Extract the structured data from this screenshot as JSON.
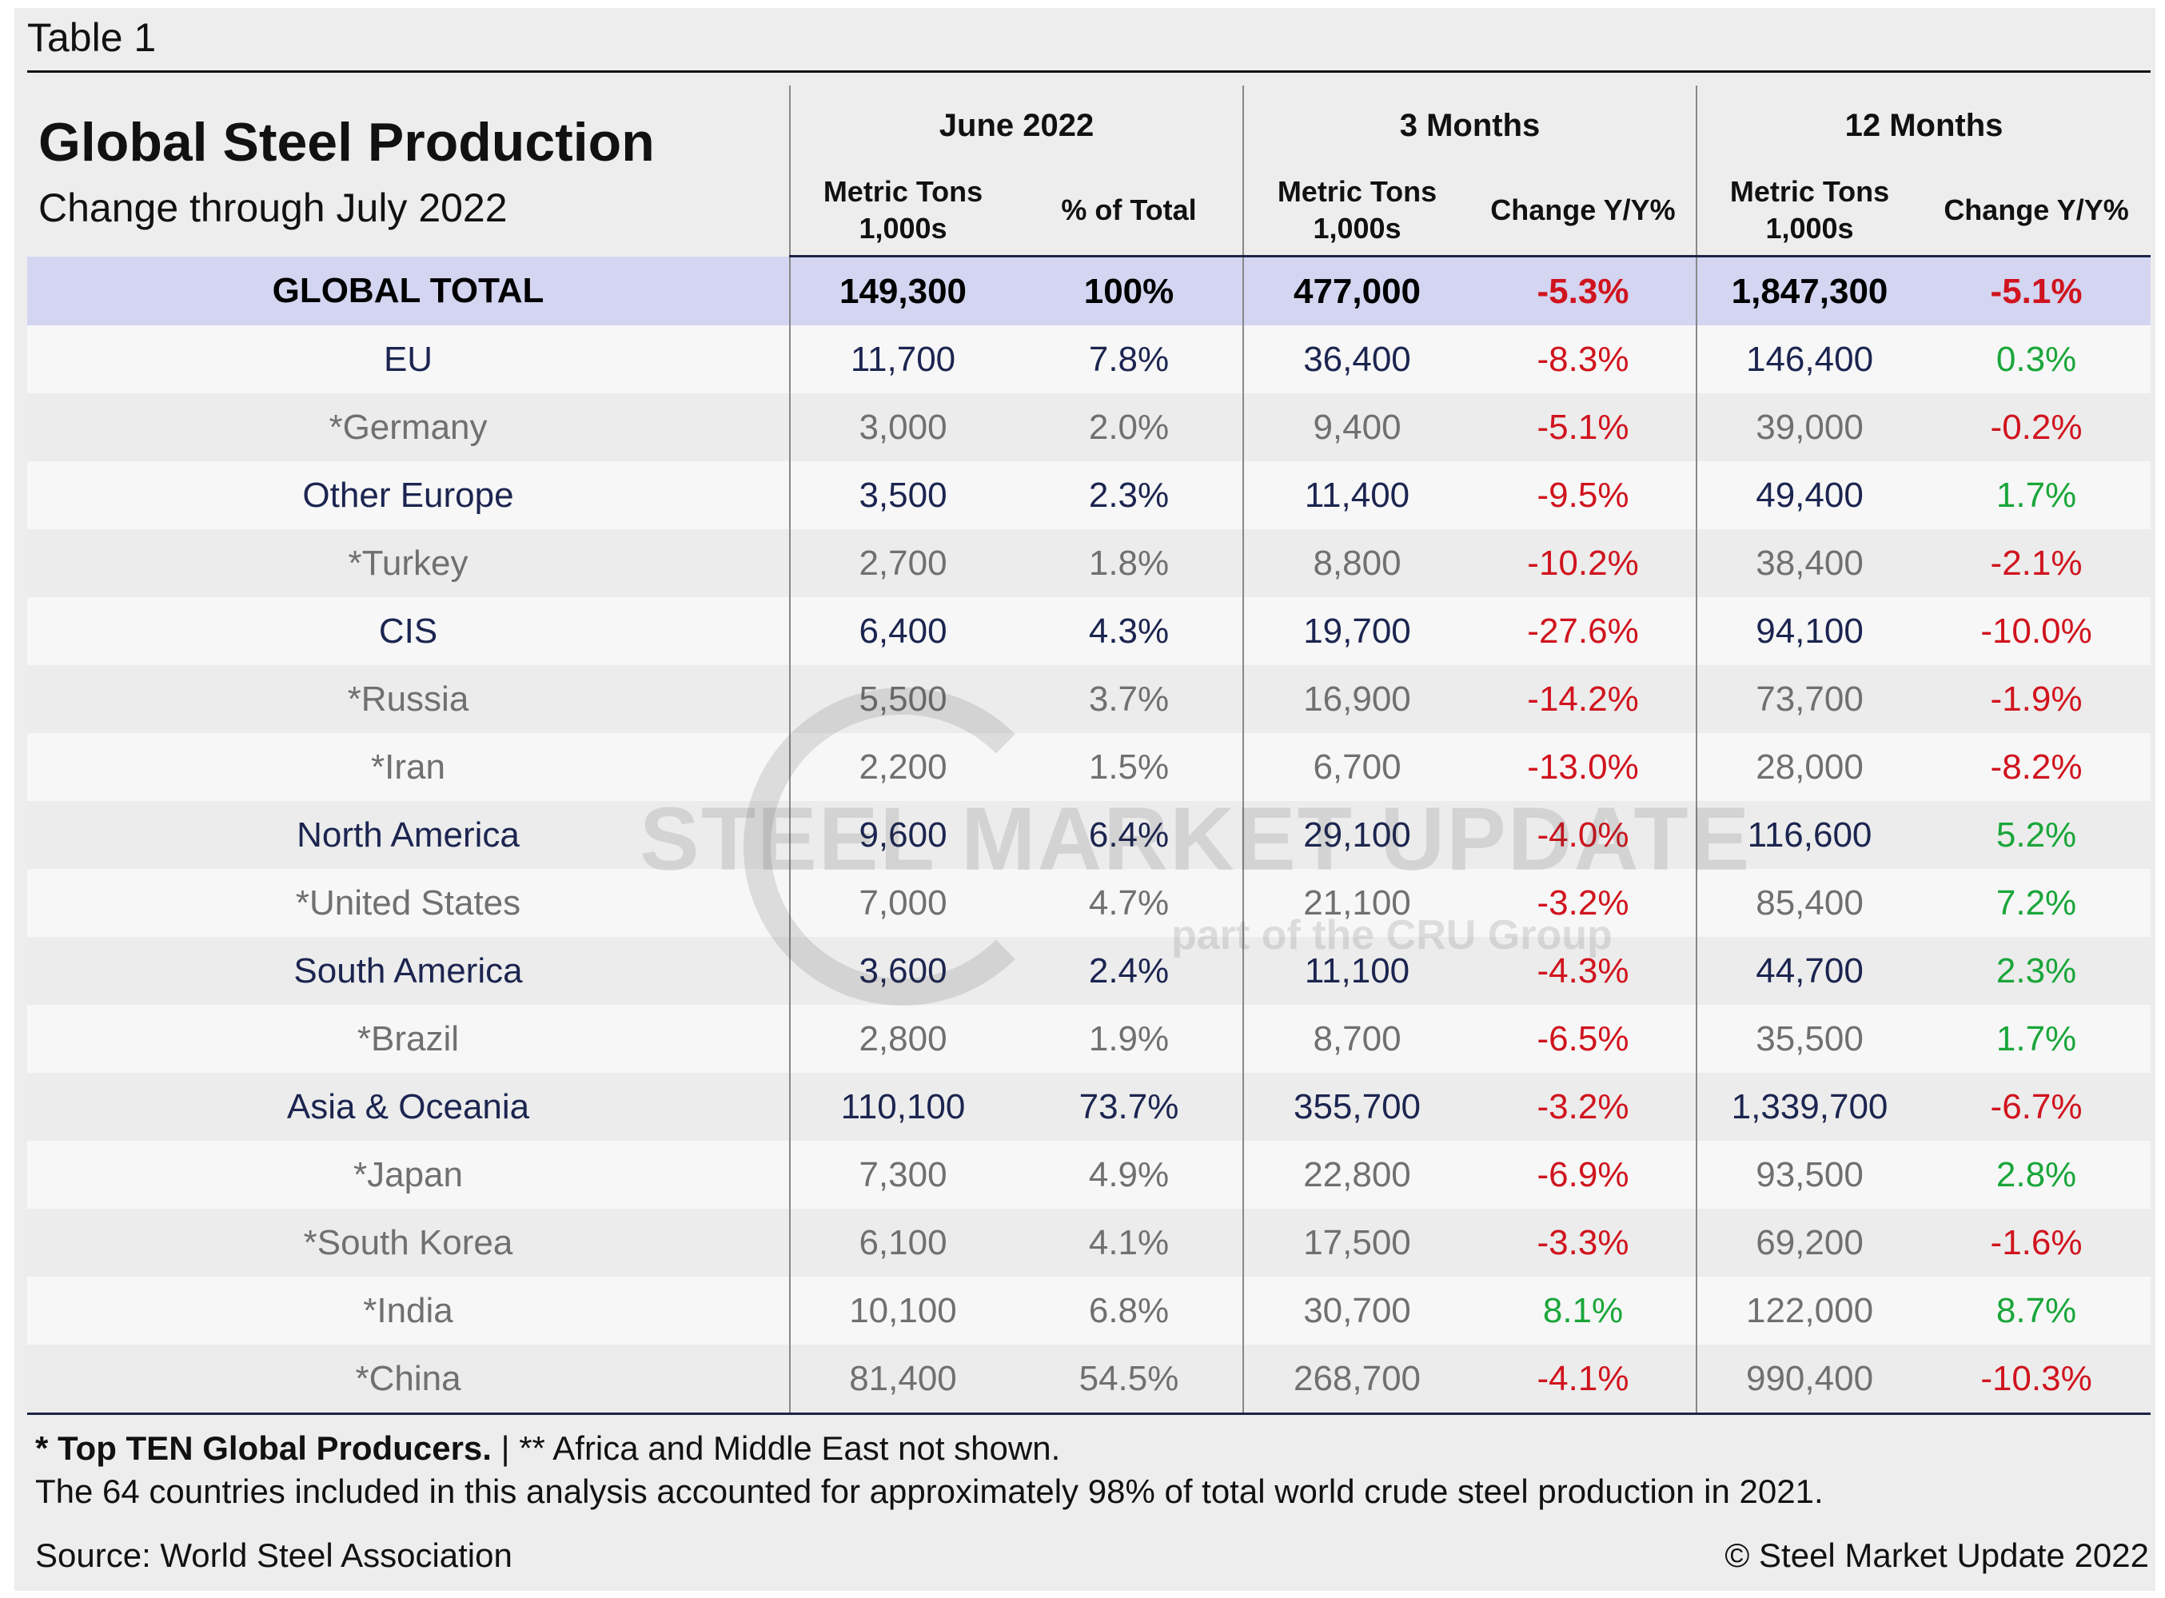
{
  "caption": "Table 1",
  "title": "Global Steel Production",
  "subtitle": "Change through July 2022",
  "groups": [
    "June 2022",
    "3 Months",
    "12 Months"
  ],
  "subheaders": {
    "metric_tons": "Metric Tons",
    "thousands": "1,000s",
    "pct_total": "% of Total",
    "change": "Change Y/Y%"
  },
  "rows": [
    {
      "name": "GLOBAL TOTAL",
      "type": "total",
      "june_mt": "149,300",
      "june_pct": "100%",
      "m3_mt": "477,000",
      "m3_chg": "-5.3%",
      "m12_mt": "1,847,300",
      "m12_chg": "-5.1%"
    },
    {
      "name": "EU",
      "type": "region",
      "june_mt": "11,700",
      "june_pct": "7.8%",
      "m3_mt": "36,400",
      "m3_chg": "-8.3%",
      "m12_mt": "146,400",
      "m12_chg": "0.3%"
    },
    {
      "name": "*Germany",
      "type": "country",
      "june_mt": "3,000",
      "june_pct": "2.0%",
      "m3_mt": "9,400",
      "m3_chg": "-5.1%",
      "m12_mt": "39,000",
      "m12_chg": "-0.2%"
    },
    {
      "name": "Other Europe",
      "type": "region",
      "june_mt": "3,500",
      "june_pct": "2.3%",
      "m3_mt": "11,400",
      "m3_chg": "-9.5%",
      "m12_mt": "49,400",
      "m12_chg": "1.7%"
    },
    {
      "name": "*Turkey",
      "type": "country",
      "june_mt": "2,700",
      "june_pct": "1.8%",
      "m3_mt": "8,800",
      "m3_chg": "-10.2%",
      "m12_mt": "38,400",
      "m12_chg": "-2.1%"
    },
    {
      "name": "CIS",
      "type": "region",
      "june_mt": "6,400",
      "june_pct": "4.3%",
      "m3_mt": "19,700",
      "m3_chg": "-27.6%",
      "m12_mt": "94,100",
      "m12_chg": "-10.0%"
    },
    {
      "name": "*Russia",
      "type": "country",
      "june_mt": "5,500",
      "june_pct": "3.7%",
      "m3_mt": "16,900",
      "m3_chg": "-14.2%",
      "m12_mt": "73,700",
      "m12_chg": "-1.9%"
    },
    {
      "name": "*Iran",
      "type": "country",
      "june_mt": "2,200",
      "june_pct": "1.5%",
      "m3_mt": "6,700",
      "m3_chg": "-13.0%",
      "m12_mt": "28,000",
      "m12_chg": "-8.2%"
    },
    {
      "name": "North America",
      "type": "region",
      "june_mt": "9,600",
      "june_pct": "6.4%",
      "m3_mt": "29,100",
      "m3_chg": "-4.0%",
      "m12_mt": "116,600",
      "m12_chg": "5.2%"
    },
    {
      "name": "*United States",
      "type": "country",
      "june_mt": "7,000",
      "june_pct": "4.7%",
      "m3_mt": "21,100",
      "m3_chg": "-3.2%",
      "m12_mt": "85,400",
      "m12_chg": "7.2%"
    },
    {
      "name": "South America",
      "type": "region",
      "june_mt": "3,600",
      "june_pct": "2.4%",
      "m3_mt": "11,100",
      "m3_chg": "-4.3%",
      "m12_mt": "44,700",
      "m12_chg": "2.3%"
    },
    {
      "name": "*Brazil",
      "type": "country",
      "june_mt": "2,800",
      "june_pct": "1.9%",
      "m3_mt": "8,700",
      "m3_chg": "-6.5%",
      "m12_mt": "35,500",
      "m12_chg": "1.7%"
    },
    {
      "name": "Asia & Oceania",
      "type": "region",
      "june_mt": "110,100",
      "june_pct": "73.7%",
      "m3_mt": "355,700",
      "m3_chg": "-3.2%",
      "m12_mt": "1,339,700",
      "m12_chg": "-6.7%"
    },
    {
      "name": "*Japan",
      "type": "country",
      "june_mt": "7,300",
      "june_pct": "4.9%",
      "m3_mt": "22,800",
      "m3_chg": "-6.9%",
      "m12_mt": "93,500",
      "m12_chg": "2.8%"
    },
    {
      "name": "*South Korea",
      "type": "country",
      "june_mt": "6,100",
      "june_pct": "4.1%",
      "m3_mt": "17,500",
      "m3_chg": "-3.3%",
      "m12_mt": "69,200",
      "m12_chg": "-1.6%"
    },
    {
      "name": "*India",
      "type": "country",
      "june_mt": "10,100",
      "june_pct": "6.8%",
      "m3_mt": "30,700",
      "m3_chg": "8.1%",
      "m12_mt": "122,000",
      "m12_chg": "8.7%"
    },
    {
      "name": "*China",
      "type": "country",
      "june_mt": "81,400",
      "june_pct": "54.5%",
      "m3_mt": "268,700",
      "m3_chg": "-4.1%",
      "m12_mt": "990,400",
      "m12_chg": "-10.3%"
    }
  ],
  "footer": {
    "note_bold": "* Top TEN Global Producers.",
    "note_rest": " | ** Africa and Middle East not shown.",
    "coverage": "The 64 countries included in this analysis accounted for approximately 98% of total world crude steel production in 2021.",
    "source": "Source: World Steel Association",
    "copyright": "© Steel Market Update 2022"
  },
  "watermark": {
    "name": "STEEL MARKET UPDATE",
    "tagline": "part of the CRU Group"
  },
  "colors": {
    "negative": "#d0141e",
    "positive": "#1aa63a",
    "total_bg": "#d3d5f1",
    "region_text": "#1c2550",
    "country_text": "#707070"
  }
}
